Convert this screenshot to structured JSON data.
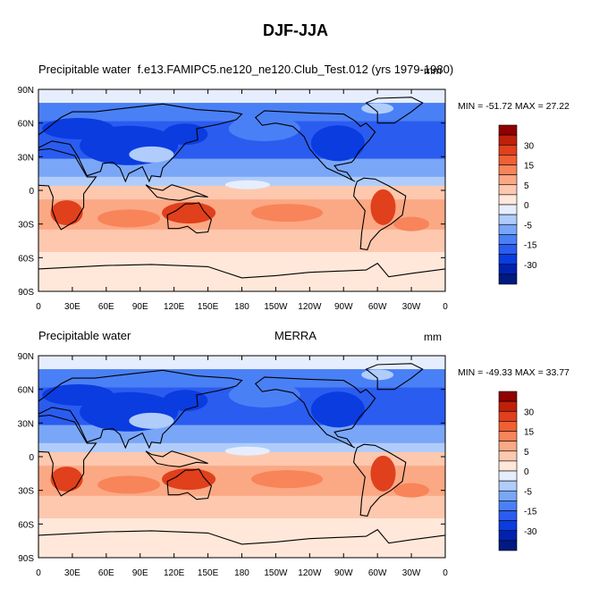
{
  "figure": {
    "title": "DJF-JJA"
  },
  "colorbar": {
    "colors": [
      "#001a80",
      "#0022b0",
      "#0a3ce0",
      "#2a5cf0",
      "#4a80f5",
      "#7aa6f8",
      "#b0ccfb",
      "#e6eefd",
      "#ffe8da",
      "#fdc8ae",
      "#fba884",
      "#f8845a",
      "#f06034",
      "#e0401c",
      "#c0200a",
      "#900000"
    ],
    "tick_labels": [
      "30",
      "15",
      "5",
      "0",
      "-5",
      "-15",
      "-30"
    ]
  },
  "chart_data": [
    {
      "type": "heatmap",
      "left_label": "Precipitable water",
      "center_label": "f.e13.FAMIPC5.ne120_ne120.Club_Test.012 (yrs 1979-1980)",
      "units": "mm",
      "min_max": "MIN = -51.72 MAX =  27.22",
      "xticks": [
        "0",
        "30E",
        "60E",
        "90E",
        "120E",
        "150E",
        "180",
        "150W",
        "120W",
        "90W",
        "60W",
        "30W",
        "0"
      ],
      "yticks": [
        "90N",
        "60N",
        "30N",
        "0",
        "30S",
        "60S",
        "90S"
      ]
    },
    {
      "type": "heatmap",
      "left_label": "Precipitable water",
      "center_label": "MERRA",
      "units": "mm",
      "min_max": "MIN = -49.33 MAX =  33.77",
      "xticks": [
        "0",
        "30E",
        "60E",
        "90E",
        "120E",
        "150E",
        "180",
        "150W",
        "120W",
        "90W",
        "60W",
        "30W",
        "0"
      ],
      "yticks": [
        "90N",
        "60N",
        "30N",
        "0",
        "30S",
        "60S",
        "90S"
      ]
    }
  ]
}
